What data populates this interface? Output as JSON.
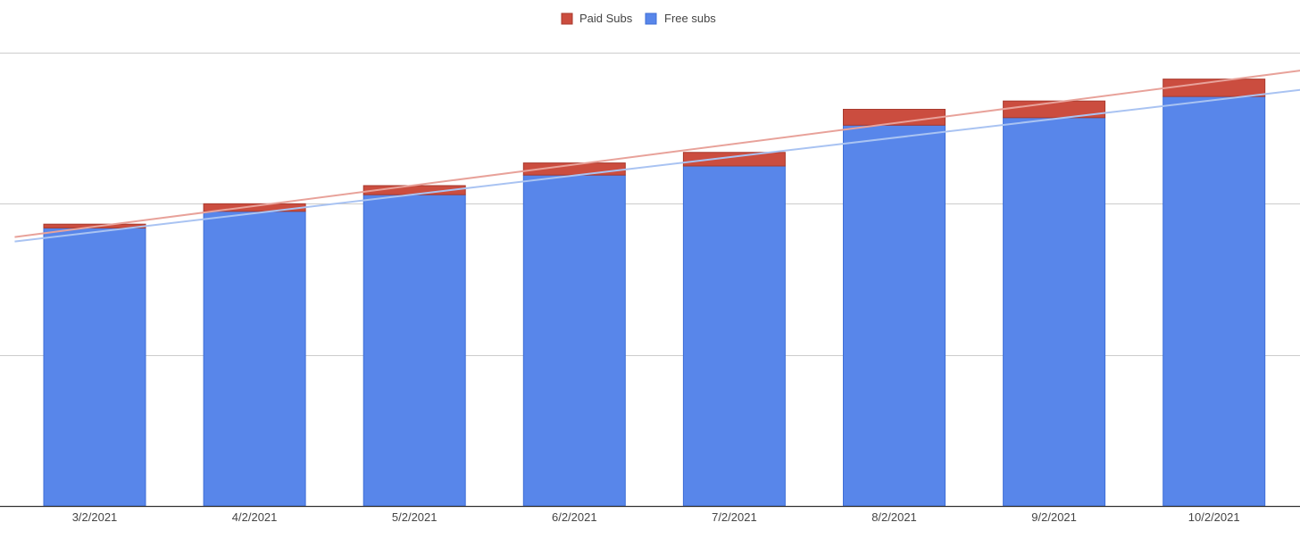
{
  "chart_data": {
    "type": "bar",
    "stacked": true,
    "categories": [
      "3/2/2021",
      "4/2/2021",
      "5/2/2021",
      "6/2/2021",
      "7/2/2021",
      "8/2/2021",
      "9/2/2021",
      "10/2/2021"
    ],
    "series": [
      {
        "name": "Free subs",
        "color": "#5886EA",
        "values": [
          1840,
          1950,
          2060,
          2190,
          2250,
          2520,
          2570,
          2710
        ]
      },
      {
        "name": "Paid Subs",
        "color": "#CB4D3F",
        "values": [
          25,
          50,
          60,
          80,
          90,
          105,
          110,
          115
        ]
      }
    ],
    "trendlines": [
      {
        "series": "Paid Subs",
        "color": "#E8A29A",
        "from": {
          "x": -0.5,
          "y": 1780
        },
        "to": {
          "x": 7.75,
          "y": 2910
        }
      },
      {
        "series": "Free subs",
        "color": "#A9C3F2",
        "from": {
          "x": -0.5,
          "y": 1750
        },
        "to": {
          "x": 7.75,
          "y": 2780
        }
      }
    ],
    "ylim": [
      0,
      3000
    ],
    "y_gridlines": [
      1000,
      2000,
      3000
    ],
    "y_tick_labels_visible": false,
    "legend_position": "top",
    "title": "",
    "xlabel": "",
    "ylabel": ""
  }
}
